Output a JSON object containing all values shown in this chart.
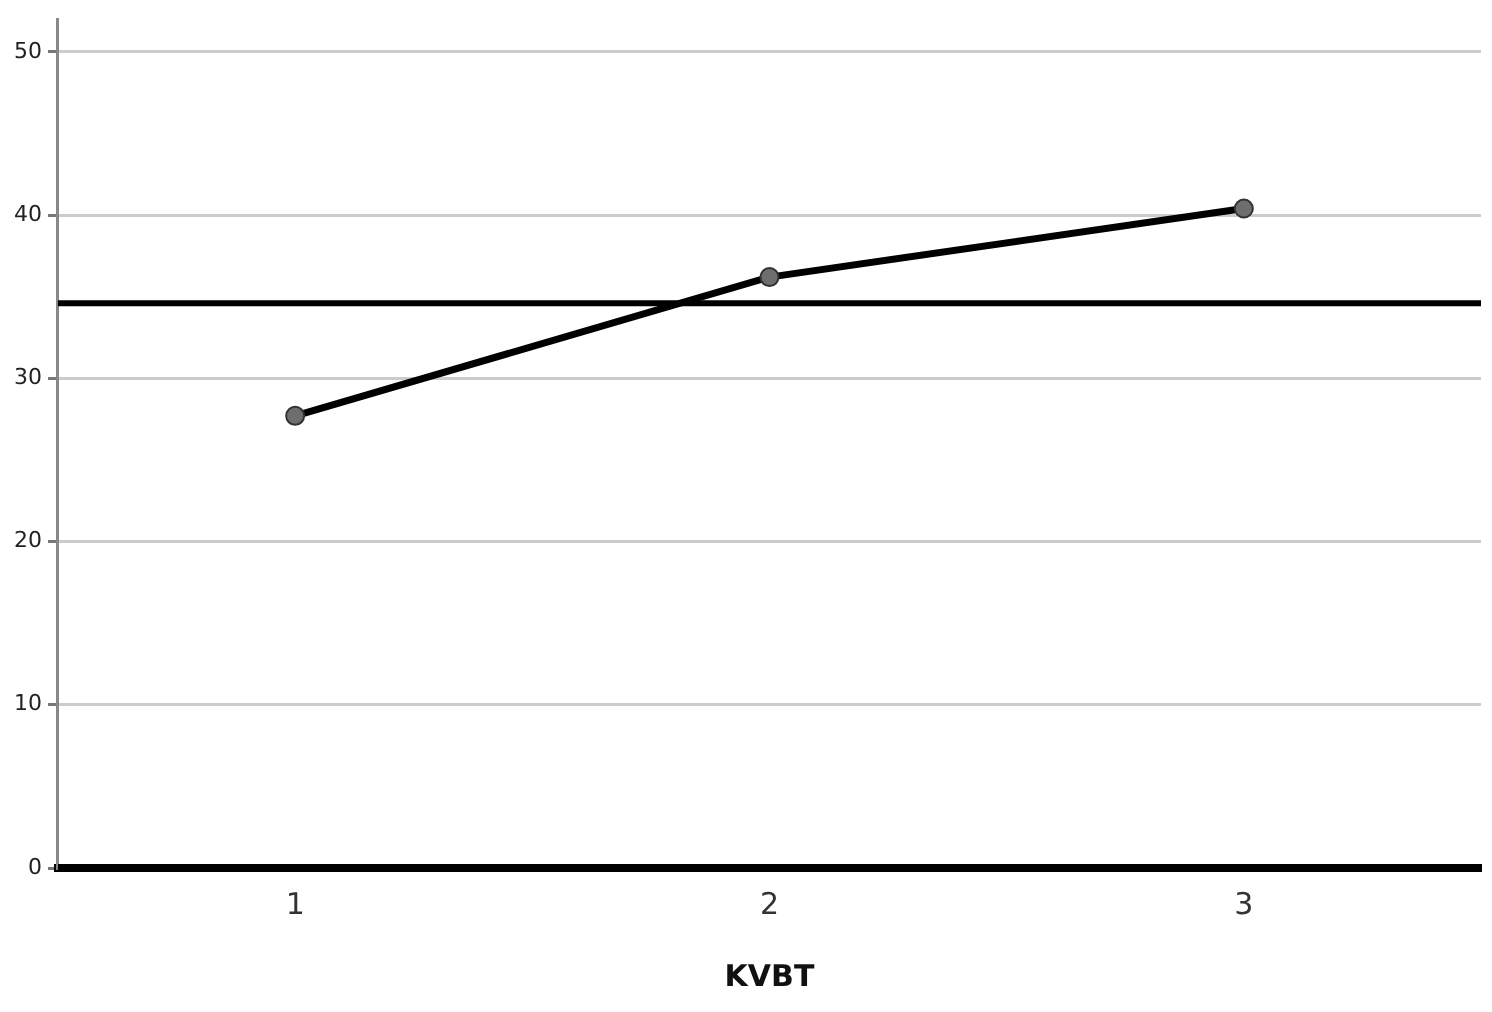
{
  "chart_data": {
    "type": "line",
    "xlabel": "KVBT",
    "categories": [
      "1",
      "2",
      "3"
    ],
    "series": [
      {
        "color": "#000000",
        "values": [
          27.7,
          36.2,
          40.4
        ]
      }
    ],
    "ylim": [
      0,
      52
    ],
    "yticks": [
      0,
      10,
      20,
      30,
      40,
      50
    ],
    "grid": "y",
    "legend": false,
    "marker": "circle",
    "line_style": "solid",
    "ref_lines": [
      {
        "axis": "y",
        "value": 34.6,
        "color": "#000000"
      }
    ]
  }
}
